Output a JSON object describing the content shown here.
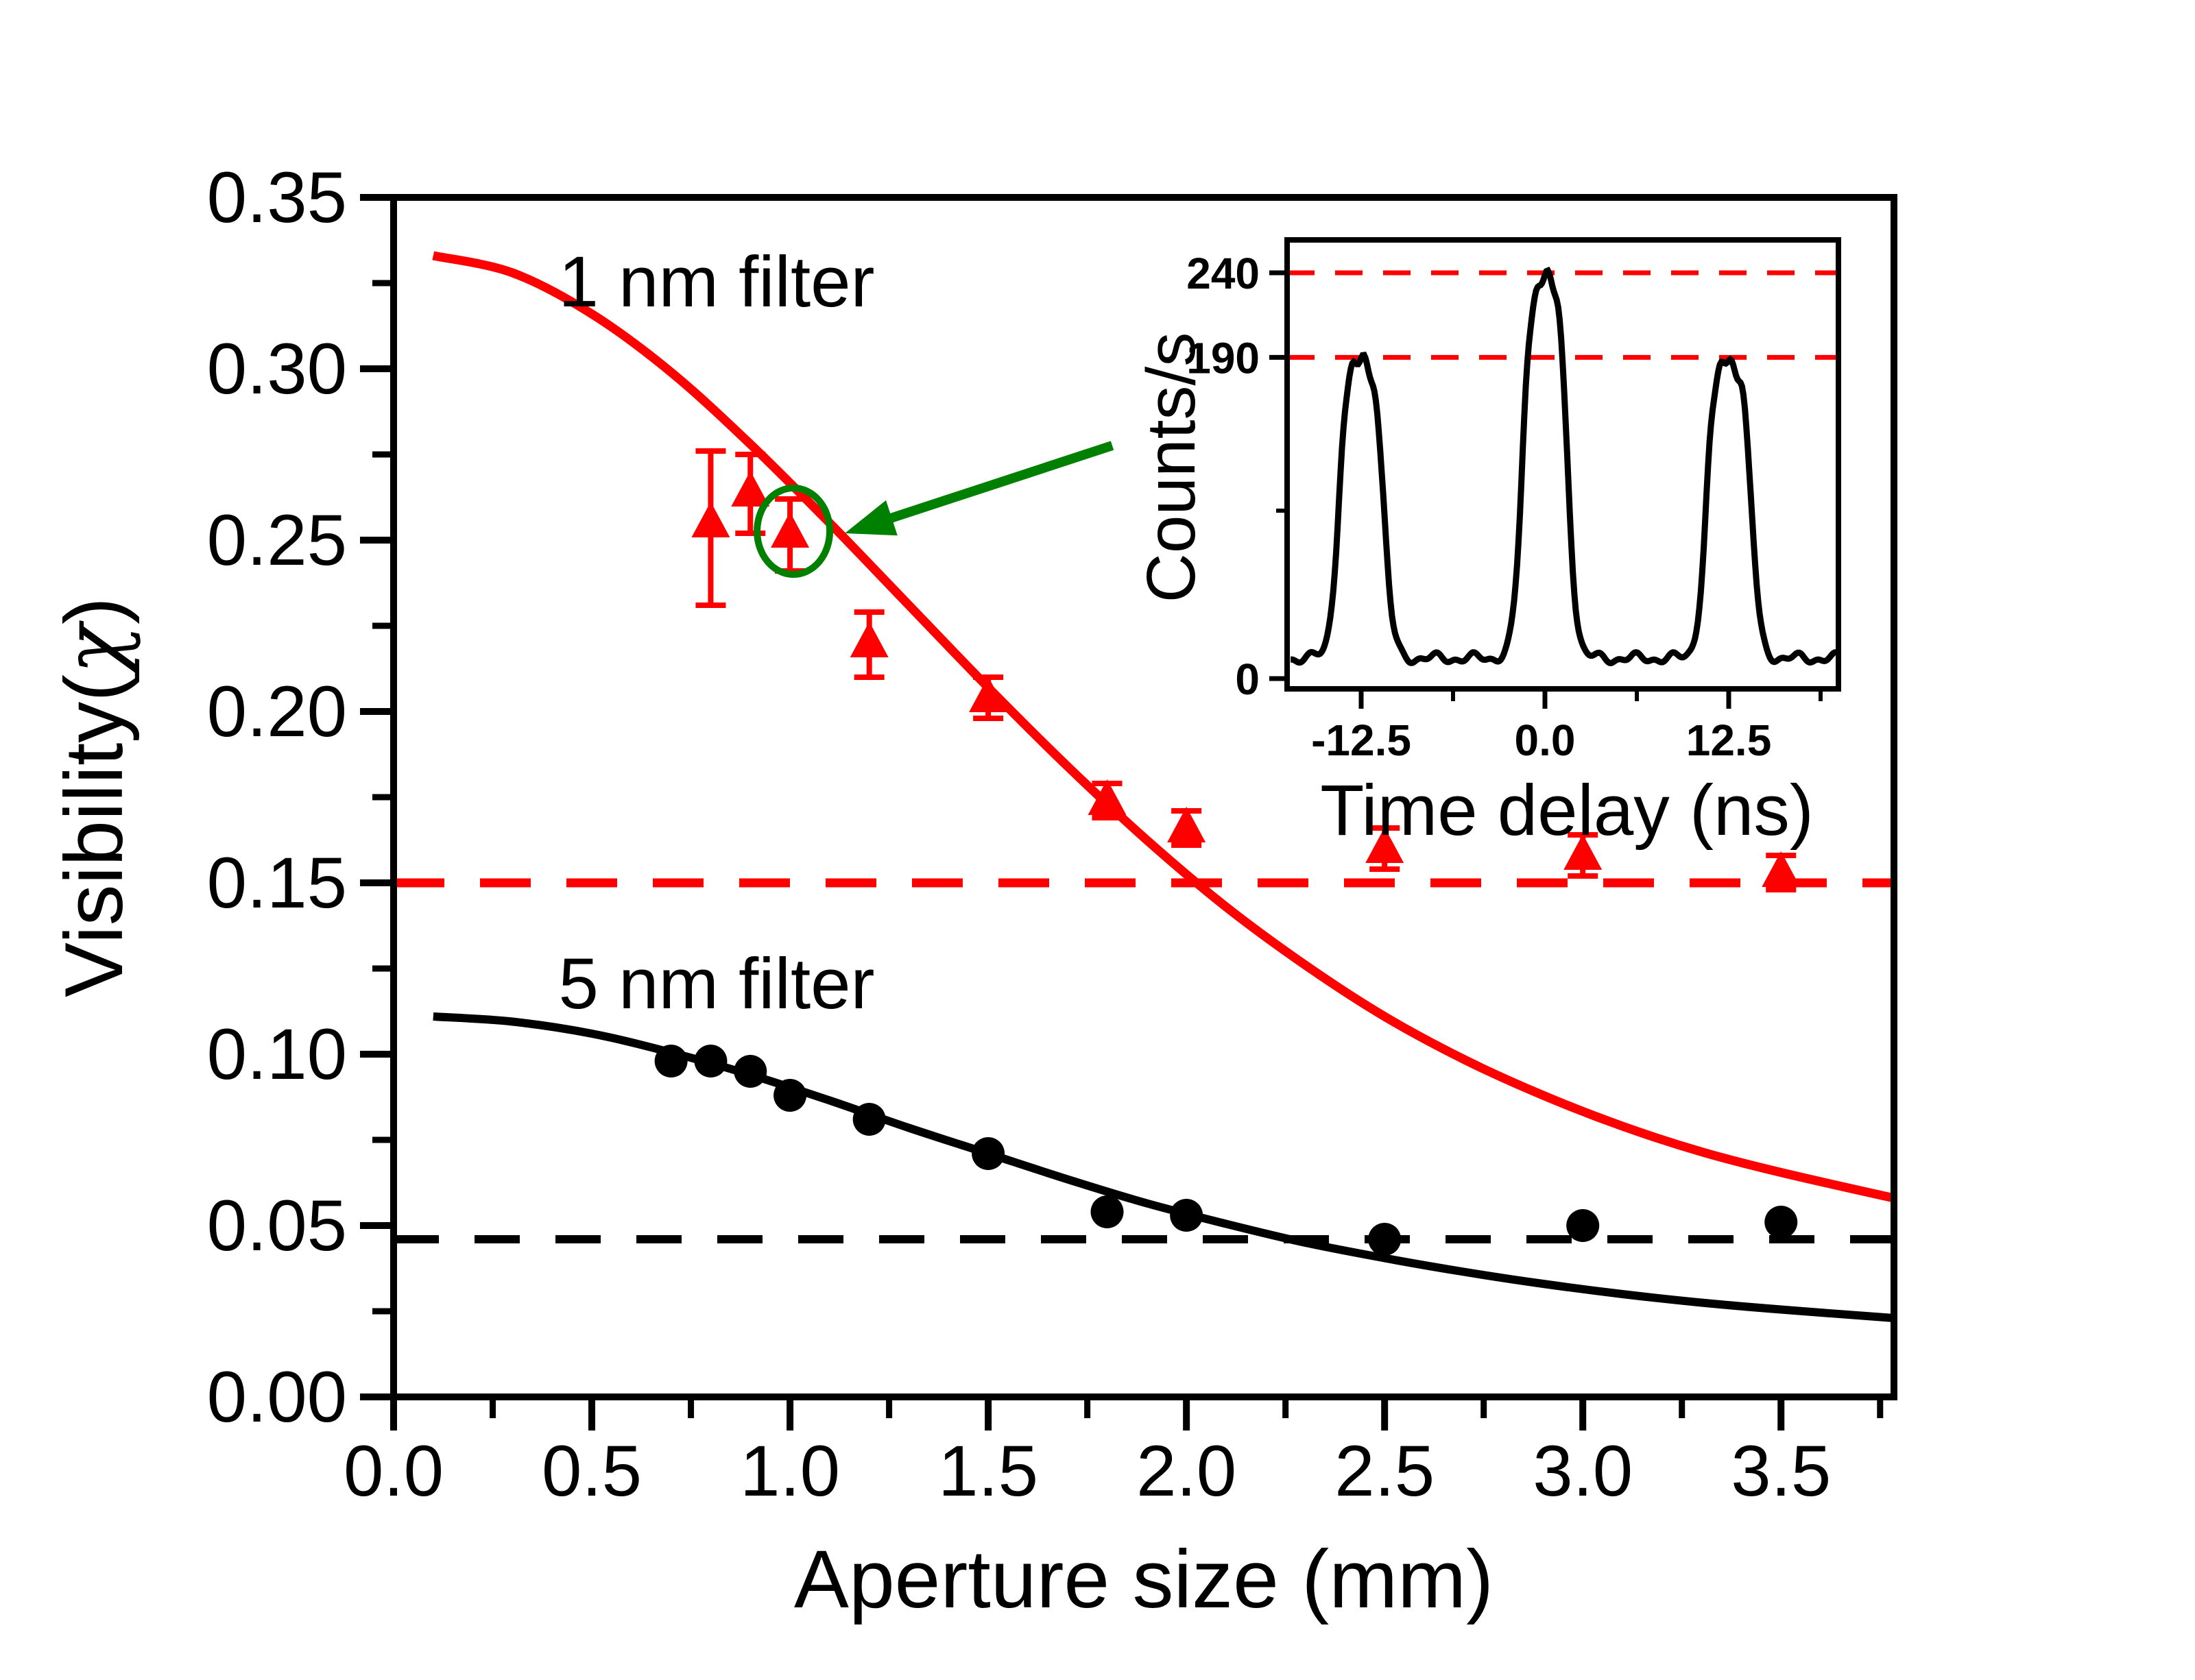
{
  "figure": {
    "background": "#ffffff",
    "accent_red": "#ff0000",
    "accent_green": "#008000",
    "accent_black": "#000000"
  },
  "chart_data": [
    {
      "type": "scatter",
      "title": "",
      "xlabel": "Aperture size (mm)",
      "ylabel": "Visibility(χ)",
      "xlim": [
        0,
        3.785
      ],
      "ylim": [
        0,
        0.35
      ],
      "grid": "off",
      "xticks": {
        "major_values": [
          0.0,
          0.5,
          1.0,
          1.5,
          2.0,
          2.5,
          3.0,
          3.5
        ],
        "minor_values": [
          0.25,
          0.75,
          1.25,
          1.75,
          2.25,
          2.75,
          3.25,
          3.75
        ],
        "labels": [
          "0.0",
          "0.5",
          "1.0",
          "1.5",
          "2.0",
          "2.5",
          "3.0",
          "3.5"
        ]
      },
      "yticks": {
        "major_values": [
          0.0,
          0.05,
          0.1,
          0.15,
          0.2,
          0.25,
          0.3,
          0.35
        ],
        "minor_values": [
          0.025,
          0.075,
          0.125,
          0.175,
          0.225,
          0.275,
          0.325
        ],
        "labels": [
          "0.00",
          "0.05",
          "0.10",
          "0.15",
          "0.20",
          "0.25",
          "0.30",
          "0.35"
        ]
      },
      "series": [
        {
          "name": "1 nm filter",
          "color": "#ff0000",
          "marker": "triangle",
          "points": [
            {
              "x": 0.8,
              "y": 0.255,
              "err_up": 0.021,
              "err_dn": 0.024
            },
            {
              "x": 0.9,
              "y": 0.264,
              "err_up": 0.011,
              "err_dn": 0.012
            },
            {
              "x": 1.0,
              "y": 0.252,
              "err_up": 0.01,
              "err_dn": 0.011
            },
            {
              "x": 1.2,
              "y": 0.22,
              "err_up": 0.009,
              "err_dn": 0.01
            },
            {
              "x": 1.5,
              "y": 0.204,
              "err_up": 0.006,
              "err_dn": 0.006
            },
            {
              "x": 1.8,
              "y": 0.174,
              "err_up": 0.005,
              "err_dn": 0.005
            },
            {
              "x": 2.0,
              "y": 0.166,
              "err_up": 0.005,
              "err_dn": 0.005
            },
            {
              "x": 2.5,
              "y": 0.16,
              "err_up": 0.006,
              "err_dn": 0.006
            },
            {
              "x": 3.0,
              "y": 0.158,
              "err_up": 0.006,
              "err_dn": 0.006
            },
            {
              "x": 3.5,
              "y": 0.153,
              "err_up": 0.005,
              "err_dn": 0.005
            }
          ],
          "fit_curve": [
            [
              0.1,
              0.333
            ],
            [
              0.3,
              0.328
            ],
            [
              0.5,
              0.316
            ],
            [
              0.7,
              0.299
            ],
            [
              0.9,
              0.278
            ],
            [
              1.1,
              0.255
            ],
            [
              1.3,
              0.231
            ],
            [
              1.5,
              0.207
            ],
            [
              1.7,
              0.184
            ],
            [
              1.9,
              0.1625
            ],
            [
              2.1,
              0.143
            ],
            [
              2.3,
              0.126
            ],
            [
              2.5,
              0.111
            ],
            [
              2.7,
              0.0985
            ],
            [
              2.9,
              0.088
            ],
            [
              3.1,
              0.079
            ],
            [
              3.3,
              0.0715
            ],
            [
              3.5,
              0.0655
            ],
            [
              3.785,
              0.058
            ]
          ],
          "reference_line_y": 0.15,
          "reference_line_style": "dashed"
        },
        {
          "name": "5 nm filter",
          "color": "#000000",
          "marker": "circle",
          "points": [
            {
              "x": 0.7,
              "y": 0.098,
              "err_up": 0.002,
              "err_dn": 0.002
            },
            {
              "x": 0.8,
              "y": 0.098,
              "err_up": 0.002,
              "err_dn": 0.002
            },
            {
              "x": 0.9,
              "y": 0.095,
              "err_up": 0.002,
              "err_dn": 0.002
            },
            {
              "x": 1.0,
              "y": 0.088,
              "err_up": 0.002,
              "err_dn": 0.002
            },
            {
              "x": 1.2,
              "y": 0.081,
              "err_up": 0.002,
              "err_dn": 0.002
            },
            {
              "x": 1.5,
              "y": 0.071,
              "err_up": 0.002,
              "err_dn": 0.002
            },
            {
              "x": 1.8,
              "y": 0.054,
              "err_up": 0.002,
              "err_dn": 0.002
            },
            {
              "x": 2.0,
              "y": 0.053,
              "err_up": 0.002,
              "err_dn": 0.002
            },
            {
              "x": 2.5,
              "y": 0.046,
              "err_up": 0.002,
              "err_dn": 0.002
            },
            {
              "x": 3.0,
              "y": 0.05,
              "err_up": 0.002,
              "err_dn": 0.002
            },
            {
              "x": 3.5,
              "y": 0.051,
              "err_up": 0.002,
              "err_dn": 0.002
            }
          ],
          "fit_curve": [
            [
              0.1,
              0.111
            ],
            [
              0.3,
              0.1095
            ],
            [
              0.5,
              0.106
            ],
            [
              0.7,
              0.1005
            ],
            [
              0.9,
              0.094
            ],
            [
              1.1,
              0.0865
            ],
            [
              1.3,
              0.0785
            ],
            [
              1.5,
              0.071
            ],
            [
              1.7,
              0.0635
            ],
            [
              1.9,
              0.0565
            ],
            [
              2.1,
              0.0505
            ],
            [
              2.3,
              0.045
            ],
            [
              2.5,
              0.0405
            ],
            [
              2.7,
              0.0365
            ],
            [
              2.9,
              0.033
            ],
            [
              3.1,
              0.03
            ],
            [
              3.3,
              0.0275
            ],
            [
              3.5,
              0.0255
            ],
            [
              3.785,
              0.023
            ]
          ],
          "reference_line_y": 0.046,
          "reference_line_style": "dashed"
        }
      ],
      "annotations": {
        "series1_label": "1 nm filter",
        "series2_label": "5 nm filter",
        "highlighted_point": {
          "x": 1.0,
          "y": 0.252,
          "marker": "green-open-circle"
        },
        "arrow_color": "#008000"
      }
    },
    {
      "type": "line",
      "role": "inset",
      "xlabel": "Time delay (ns)",
      "ylabel": "Counts/s",
      "xlim": [
        -17.5,
        20.0
      ],
      "ylim": [
        -6,
        260
      ],
      "xticks": {
        "major_values": [
          -12.5,
          0.0,
          12.5
        ],
        "minor_values": [
          -6.25,
          6.25,
          18.75
        ],
        "labels": [
          "-12.5",
          "0.0",
          "12.5"
        ]
      },
      "yticks": {
        "major_values": [
          240,
          190,
          0
        ],
        "labels": [
          "240",
          "190",
          "0"
        ]
      },
      "ref_lines": [
        {
          "y": 240,
          "color": "#ff0000",
          "style": "dashed"
        },
        {
          "y": 190,
          "color": "#ff0000",
          "style": "dashed"
        }
      ],
      "trace_color": "#000000",
      "pulses": {
        "centers": [
          -12.5,
          0.0,
          12.5
        ],
        "peak_values": [
          190,
          240,
          190
        ],
        "baseline": 12,
        "half_width": 1.55,
        "edge": 0.3
      }
    }
  ]
}
